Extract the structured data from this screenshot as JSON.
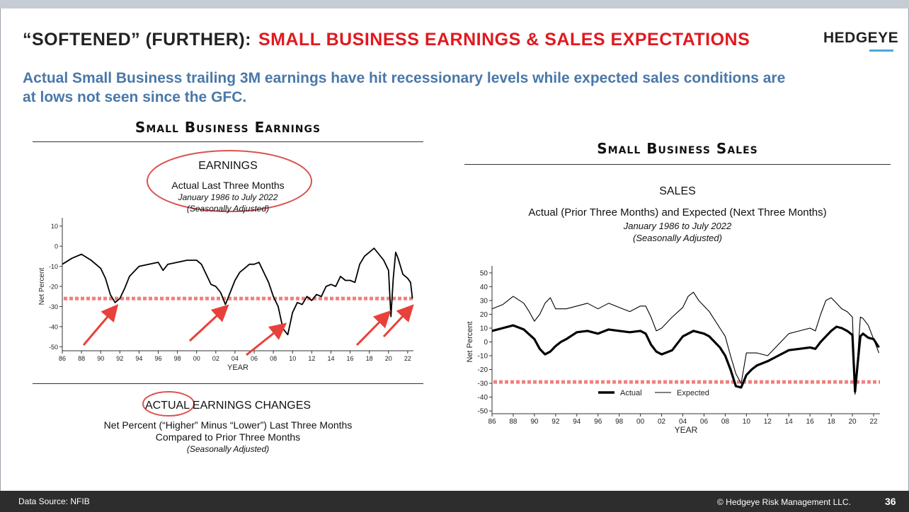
{
  "header": {
    "title_prefix": "“SOFTENED” (FURTHER):",
    "title_highlight": "SMALL BUSINESS EARNINGS & SALES EXPECTATIONS",
    "logo": "HEDGEYE",
    "subtitle": "Actual Small Business trailing 3M earnings have hit recessionary levels while expected sales conditions are at lows not seen since the GFC."
  },
  "left_panel": {
    "heading": "Small Business Earnings",
    "chart_title": "EARNINGS",
    "chart_subtitle": "Actual Last Three Months",
    "chart_range": "January 1986 to July 2022",
    "chart_adjust": "(Seasonally Adjusted)",
    "bottom_title_circled": "ACTUAL",
    "bottom_title_rest": " EARNINGS CHANGES",
    "bottom_line1": "Net Percent (“Higher” Minus “Lower”) Last Three Months",
    "bottom_line2": "Compared to Prior Three Months",
    "bottom_adjust": "(Seasonally Adjusted)"
  },
  "right_panel": {
    "heading": "Small Business Sales",
    "chart_title": "SALES",
    "chart_subtitle": "Actual (Prior Three Months) and Expected (Next Three Months)",
    "chart_range": "January 1986 to July 2022",
    "chart_adjust": "(Seasonally Adjusted)"
  },
  "footer": {
    "source": "Data Source: NFIB",
    "copyright": "© Hedgeye Risk Management LLC.",
    "page": "36"
  },
  "colors": {
    "accent_red": "#e0191f",
    "subtitle_blue": "#4a78a8",
    "reference_line": "#f08080",
    "footer_bg": "#2d2d2d"
  },
  "chart_data": [
    {
      "type": "line",
      "title": "EARNINGS",
      "xlabel": "YEAR",
      "ylabel": "Net Percent",
      "xlim": [
        1986,
        2022.6
      ],
      "ylim": [
        -52,
        12
      ],
      "yticks": [
        10,
        0,
        -10,
        -20,
        -30,
        -40,
        -50
      ],
      "xticks": [
        "86",
        "88",
        "90",
        "92",
        "94",
        "96",
        "98",
        "00",
        "02",
        "04",
        "06",
        "08",
        "10",
        "12",
        "14",
        "16",
        "18",
        "20",
        "22"
      ],
      "reference_line": -26,
      "annotation_arrows_to": [
        [
          1991.7,
          -29
        ],
        [
          2003.2,
          -29
        ],
        [
          2009.2,
          -38
        ],
        [
          2020.1,
          -32
        ],
        [
          2022.5,
          -29
        ]
      ],
      "series": [
        {
          "x": [
            1986,
            1987,
            1988,
            1989,
            1990,
            1990.5,
            1991,
            1991.5,
            1992,
            1992.5,
            1993,
            1994,
            1995,
            1996,
            1996.5,
            1997,
            1998,
            1999,
            2000,
            2000.5,
            2001,
            2001.5,
            2002,
            2002.5,
            2003,
            2003.5,
            2004,
            2004.5,
            2005,
            2005.5,
            2006,
            2006.5,
            2007,
            2007.5,
            2008,
            2008.5,
            2009,
            2009.5,
            2010,
            2010.5,
            2011,
            2011.5,
            2012,
            2012.5,
            2013,
            2013.5,
            2014,
            2014.5,
            2015,
            2015.5,
            2016,
            2016.5,
            2017,
            2017.5,
            2018,
            2018.5,
            2019,
            2019.5,
            2020,
            2020.25,
            2020.5,
            2020.75,
            2021,
            2021.5,
            2022,
            2022.3,
            2022.5
          ],
          "values": [
            -9,
            -6,
            -4,
            -7,
            -11,
            -16,
            -24,
            -28,
            -26,
            -21,
            -15,
            -10,
            -9,
            -8,
            -12,
            -9,
            -8,
            -7,
            -7,
            -9,
            -14,
            -19,
            -20,
            -23,
            -29,
            -23,
            -17,
            -13,
            -11,
            -9,
            -9,
            -8,
            -13,
            -18,
            -25,
            -30,
            -41,
            -44,
            -33,
            -28,
            -29,
            -25,
            -27,
            -24,
            -25,
            -20,
            -19,
            -20,
            -15,
            -17,
            -17,
            -18,
            -9,
            -5,
            -3,
            -1,
            -4,
            -7,
            -12,
            -35,
            -16,
            -3,
            -6,
            -14,
            -16,
            -18,
            -26
          ]
        }
      ]
    },
    {
      "type": "line",
      "title": "SALES",
      "xlabel": "YEAR",
      "ylabel": "Net Percent",
      "xlim": [
        1986,
        2022.6
      ],
      "ylim": [
        -52,
        52
      ],
      "yticks": [
        50,
        40,
        30,
        20,
        10,
        0,
        -10,
        -20,
        -30,
        -40,
        -50
      ],
      "xticks": [
        "86",
        "88",
        "90",
        "92",
        "94",
        "96",
        "98",
        "00",
        "02",
        "04",
        "06",
        "08",
        "10",
        "12",
        "14",
        "16",
        "18",
        "20",
        "22"
      ],
      "reference_line": -29,
      "legend": [
        "Actual",
        "Expected"
      ],
      "series": [
        {
          "name": "Actual",
          "x": [
            1986,
            1987,
            1988,
            1989,
            1990,
            1990.5,
            1991,
            1991.5,
            1992,
            1992.5,
            1993,
            1994,
            1995,
            1996,
            1997,
            1998,
            1999,
            2000,
            2000.5,
            2001,
            2001.5,
            2002,
            2003,
            2004,
            2004.5,
            2005,
            2006,
            2006.5,
            2007,
            2007.5,
            2008,
            2008.5,
            2009,
            2009.5,
            2010,
            2010.5,
            2011,
            2012,
            2013,
            2014,
            2015,
            2016,
            2016.5,
            2017,
            2017.5,
            2018,
            2018.5,
            2019,
            2019.5,
            2020,
            2020.25,
            2020.5,
            2020.75,
            2021,
            2021.5,
            2022,
            2022.5
          ],
          "values": [
            8,
            10,
            12,
            9,
            2,
            -5,
            -9,
            -7,
            -3,
            0,
            2,
            7,
            8,
            6,
            9,
            8,
            7,
            8,
            6,
            -2,
            -7,
            -9,
            -6,
            4,
            6,
            8,
            6,
            4,
            0,
            -4,
            -10,
            -20,
            -32,
            -33,
            -24,
            -20,
            -17,
            -14,
            -10,
            -6,
            -5,
            -4,
            -5,
            0,
            4,
            8,
            11,
            10,
            8,
            5,
            -36,
            -15,
            4,
            6,
            3,
            2,
            -4
          ]
        },
        {
          "name": "Expected",
          "x": [
            1986,
            1987,
            1988,
            1989,
            1989.5,
            1990,
            1990.5,
            1991,
            1991.5,
            1992,
            1993,
            1994,
            1995,
            1996,
            1997,
            1998,
            1999,
            2000,
            2000.5,
            2001,
            2001.5,
            2002,
            2003,
            2004,
            2004.5,
            2005,
            2005.5,
            2006,
            2006.5,
            2007,
            2007.5,
            2008,
            2008.5,
            2009,
            2009.5,
            2010,
            2011,
            2012,
            2013,
            2014,
            2015,
            2016,
            2016.5,
            2017,
            2017.5,
            2018,
            2018.5,
            2019,
            2019.5,
            2020,
            2020.25,
            2020.5,
            2020.75,
            2021,
            2021.5,
            2022,
            2022.5
          ],
          "values": [
            24,
            27,
            33,
            28,
            22,
            15,
            20,
            28,
            32,
            24,
            24,
            26,
            28,
            24,
            28,
            25,
            22,
            26,
            26,
            18,
            8,
            10,
            18,
            25,
            33,
            36,
            30,
            26,
            22,
            16,
            10,
            4,
            -10,
            -23,
            -30,
            -8,
            -8,
            -10,
            -2,
            6,
            8,
            10,
            8,
            20,
            30,
            32,
            28,
            24,
            22,
            18,
            -38,
            -10,
            18,
            17,
            12,
            2,
            -8
          ]
        }
      ]
    }
  ]
}
